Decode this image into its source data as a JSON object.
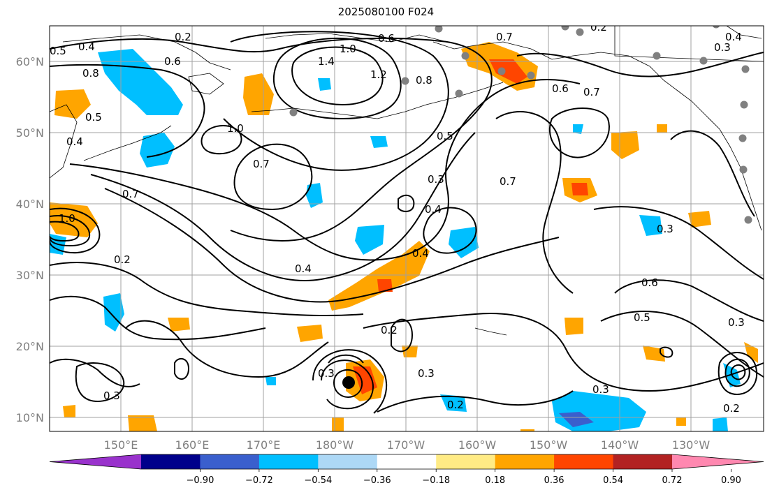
{
  "title": "2025080100 F024",
  "lat_labels": [
    "60°N",
    "50°N",
    "40°N",
    "30°N",
    "20°N",
    "10°N"
  ],
  "lon_labels": [
    "150°E",
    "160°E",
    "170°E",
    "180°W",
    "170°W",
    "160°W",
    "150°W",
    "140°W",
    "130°W"
  ],
  "colorbar": {
    "ticks": [
      "−0.90",
      "−0.72",
      "−0.54",
      "−0.36",
      "−0.18",
      "0.18",
      "0.36",
      "0.54",
      "0.72",
      "0.90"
    ],
    "colors": [
      "#9932cc",
      "#00008b",
      "#3a5fcd",
      "#00bfff",
      "#add8f6",
      "#ffffff",
      "#ffeb85",
      "#ffa500",
      "#ff4500",
      "#b22222",
      "#ff88b0"
    ]
  },
  "contour_labels": [
    "0.2",
    "0.4",
    "0.5",
    "0.6",
    "0.8",
    "1.0",
    "1.4",
    "1.2",
    "0.8",
    "0.5",
    "0.6",
    "0.7",
    "0.7",
    "0.2",
    "0.4",
    "0.3",
    "0.5",
    "1.0",
    "0.7",
    "0.7",
    "0.4",
    "1.0",
    "0.3",
    "0.4",
    "0.4",
    "0.2",
    "0.3",
    "0.6",
    "0.5",
    "0.3",
    "0.3",
    "0.2",
    "0.3",
    "0.4",
    "0.3",
    "0.2",
    "0.3",
    "0.2",
    "0.6",
    "0.7"
  ]
}
